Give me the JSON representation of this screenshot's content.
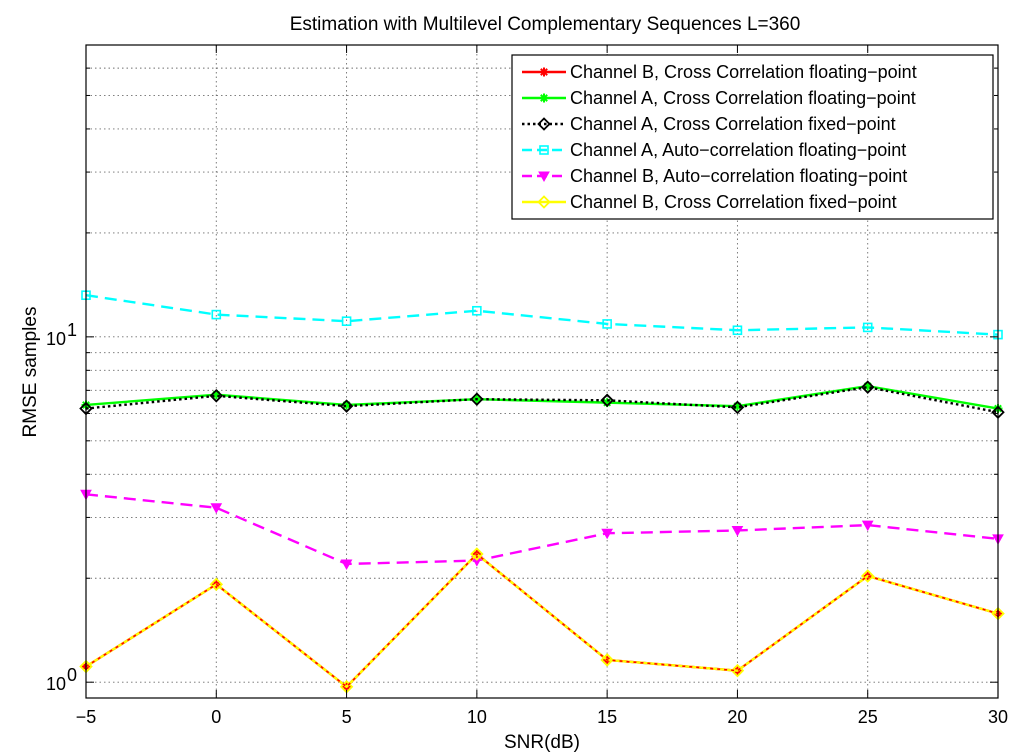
{
  "chart_data": {
    "type": "line",
    "title": "Estimation with Multilevel Complementary Sequences L=360",
    "xlabel": "SNR(dB)",
    "ylabel": "RMSE samples",
    "xscale": "linear",
    "yscale": "log",
    "xlim": [
      -5,
      30
    ],
    "ylim": [
      0.9,
      70
    ],
    "x_ticks": [
      -5,
      0,
      5,
      10,
      15,
      20,
      25,
      30
    ],
    "x_tick_labels": [
      "−5",
      "0",
      "5",
      "10",
      "15",
      "20",
      "25",
      "30"
    ],
    "y_ticks": [
      1,
      10
    ],
    "y_tick_labels": [
      {
        "base": "10",
        "exp": "0"
      },
      {
        "base": "10",
        "exp": "1"
      }
    ],
    "grid": true,
    "legend_position": "top-right",
    "x": [
      -5,
      0,
      5,
      10,
      15,
      20,
      25,
      30
    ],
    "series": [
      {
        "name": "Channel B, Cross Correlation floating−point",
        "color": "#ff0000",
        "dash": "solid",
        "marker": "asterisk",
        "values": [
          1.11,
          1.92,
          0.97,
          2.35,
          1.16,
          1.08,
          2.03,
          1.58
        ]
      },
      {
        "name": "Channel A, Cross Correlation floating−point",
        "color": "#00ff00",
        "dash": "solid",
        "marker": "asterisk",
        "values": [
          6.35,
          6.8,
          6.35,
          6.6,
          6.45,
          6.3,
          7.2,
          6.2
        ]
      },
      {
        "name": "Channel A, Cross Correlation fixed−point",
        "color": "#000000",
        "dash": "dotted",
        "marker": "diamond",
        "values": [
          6.2,
          6.75,
          6.3,
          6.6,
          6.55,
          6.25,
          7.15,
          6.05
        ]
      },
      {
        "name": "Channel A, Auto−correlation floating−point",
        "color": "#00ffff",
        "dash": "dashed",
        "marker": "square",
        "values": [
          13.2,
          11.6,
          11.1,
          11.9,
          10.9,
          10.45,
          10.65,
          10.15
        ]
      },
      {
        "name": "Channel B, Auto−correlation floating−point",
        "color": "#ff00ff",
        "dash": "dashed",
        "marker": "triangle-down",
        "values": [
          3.5,
          3.2,
          2.2,
          2.25,
          2.7,
          2.75,
          2.85,
          2.6
        ]
      },
      {
        "name": "Channel B, Cross Correlation fixed−point",
        "color": "#ffff00",
        "dash": "solid",
        "marker": "diamond",
        "values": [
          1.11,
          1.92,
          0.97,
          2.35,
          1.16,
          1.08,
          2.03,
          1.58
        ]
      }
    ]
  }
}
